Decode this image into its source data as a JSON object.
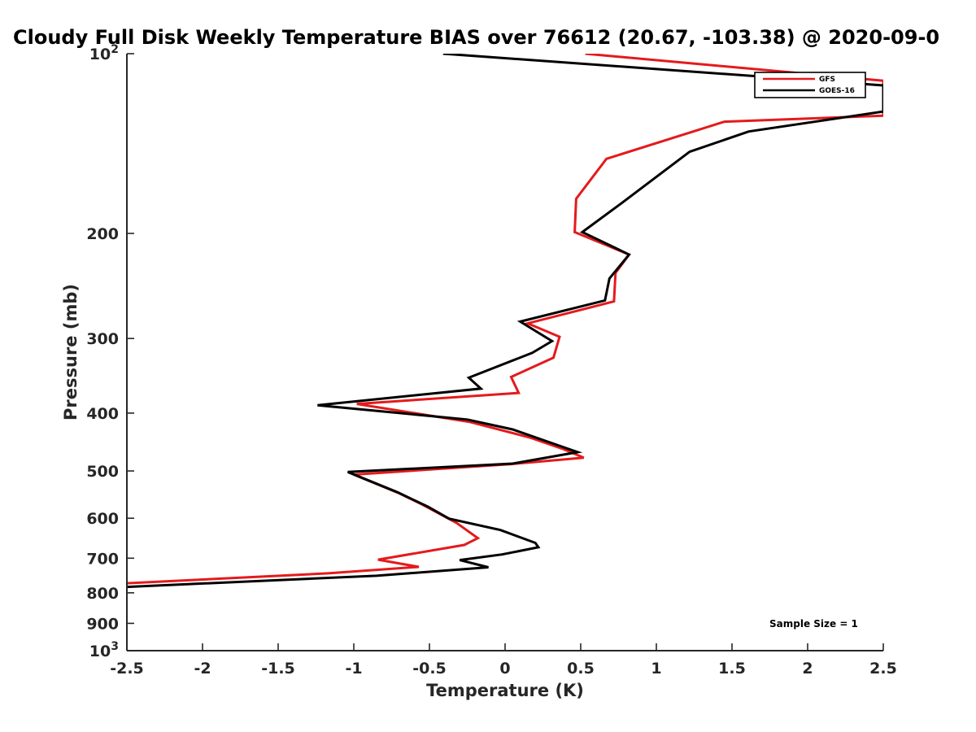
{
  "chart_data": {
    "type": "line",
    "title": "Cloudy Full Disk Weekly Temperature BIAS over 76612 (20.67, -103.38) @ 2020-09-0",
    "xlabel": "Temperature (K)",
    "ylabel": "Pressure (mb)",
    "xlim": [
      -2.5,
      2.5
    ],
    "ylim": [
      1000,
      100
    ],
    "yscale": "log",
    "y_reversed": true,
    "grid": false,
    "legend_position": "top-right",
    "x_ticks": [
      -2.5,
      -2,
      -1.5,
      -1,
      -0.5,
      0,
      0.5,
      1,
      1.5,
      2,
      2.5
    ],
    "x_tick_labels": [
      "-2.5",
      "-2",
      "-1.5",
      "-1",
      "-0.5",
      "0",
      "0.5",
      "1",
      "1.5",
      "2",
      "2.5"
    ],
    "y_ticks": [
      100,
      200,
      300,
      400,
      500,
      600,
      700,
      800,
      900,
      1000
    ],
    "y_tick_labels": [
      {
        "base": "10",
        "sup": "2"
      },
      {
        "base": "200"
      },
      {
        "base": "300"
      },
      {
        "base": "400"
      },
      {
        "base": "500"
      },
      {
        "base": "600"
      },
      {
        "base": "700"
      },
      {
        "base": "800"
      },
      {
        "base": "900"
      },
      {
        "base": "10",
        "sup": "3"
      }
    ],
    "annotation": "Sample Size = 1",
    "series": [
      {
        "name": "GFS",
        "color": "#e41a1c",
        "points": [
          [
            0.53,
            100
          ],
          [
            2.5,
            111
          ],
          [
            2.5,
            127
          ],
          [
            1.45,
            130
          ],
          [
            0.67,
            150
          ],
          [
            0.47,
            175
          ],
          [
            0.46,
            199
          ],
          [
            0.82,
            217
          ],
          [
            0.73,
            233
          ],
          [
            0.72,
            260
          ],
          [
            0.15,
            283
          ],
          [
            0.36,
            298
          ],
          [
            0.32,
            323
          ],
          [
            0.04,
            348
          ],
          [
            0.09,
            370
          ],
          [
            -0.98,
            386
          ],
          [
            -0.23,
            414
          ],
          [
            0.17,
            440
          ],
          [
            0.39,
            460
          ],
          [
            0.52,
            475
          ],
          [
            0.04,
            487
          ],
          [
            -1.0,
            507
          ],
          [
            -0.7,
            545
          ],
          [
            -0.56,
            567
          ],
          [
            -0.32,
            611
          ],
          [
            -0.18,
            648
          ],
          [
            -0.27,
            665
          ],
          [
            -0.84,
            704
          ],
          [
            -0.57,
            724
          ],
          [
            -1.17,
            742
          ],
          [
            -2.5,
            771
          ]
        ]
      },
      {
        "name": "GOES-16",
        "color": "#000000",
        "points": [
          [
            -0.41,
            100
          ],
          [
            2.5,
            113
          ],
          [
            2.5,
            125
          ],
          [
            1.61,
            135
          ],
          [
            1.22,
            146
          ],
          [
            0.77,
            178
          ],
          [
            0.51,
            199
          ],
          [
            0.82,
            217
          ],
          [
            0.69,
            238
          ],
          [
            0.66,
            259
          ],
          [
            0.1,
            281
          ],
          [
            0.31,
            303
          ],
          [
            0.18,
            317
          ],
          [
            -0.24,
            349
          ],
          [
            -0.16,
            364
          ],
          [
            -1.24,
            388
          ],
          [
            -0.25,
            410
          ],
          [
            0.05,
            426
          ],
          [
            0.32,
            450
          ],
          [
            0.48,
            465
          ],
          [
            0.05,
            486
          ],
          [
            -1.04,
            502
          ],
          [
            -0.71,
            543
          ],
          [
            -0.51,
            574
          ],
          [
            -0.37,
            601
          ],
          [
            -0.03,
            628
          ],
          [
            0.2,
            660
          ],
          [
            0.22,
            671
          ],
          [
            -0.02,
            690
          ],
          [
            -0.3,
            705
          ],
          [
            -0.11,
            725
          ],
          [
            -0.85,
            749
          ],
          [
            -2.5,
            782
          ]
        ]
      }
    ]
  }
}
